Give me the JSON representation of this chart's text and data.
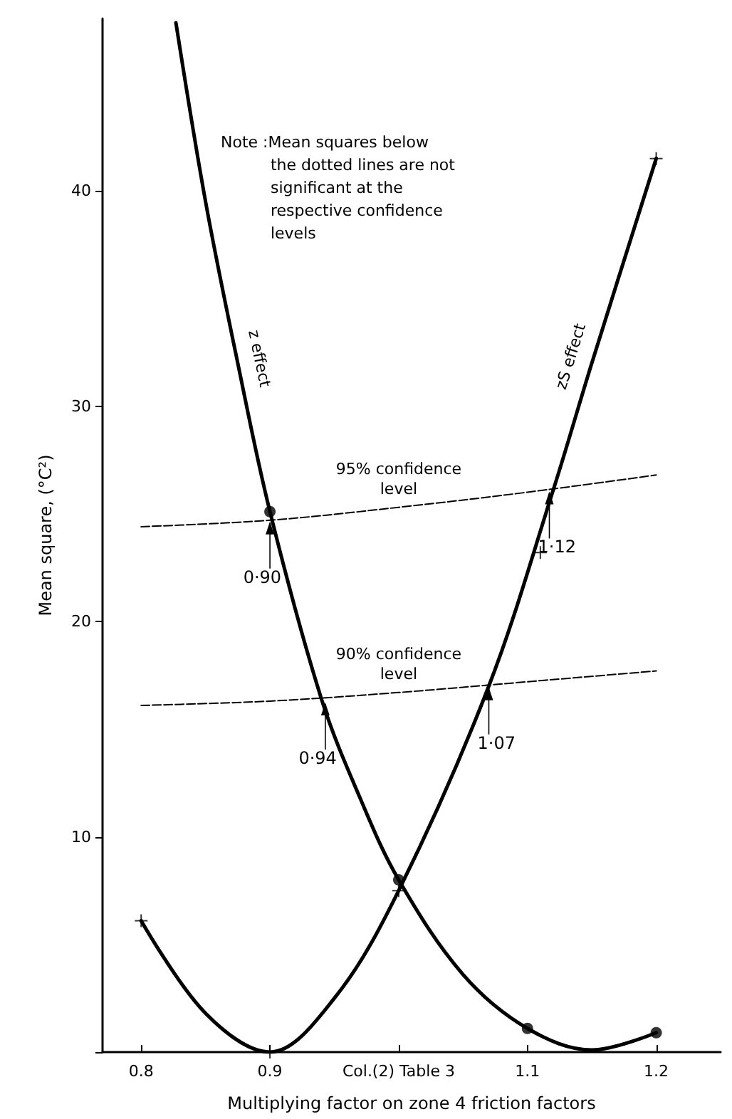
{
  "chart_data": {
    "type": "line",
    "xlabel": "Multiplying factor on zone 4 friction factors",
    "ylabel": "Mean square, (°C²)",
    "xlim": [
      0.77,
      1.25
    ],
    "ylim": [
      0,
      48
    ],
    "xticks": [
      0.8,
      0.9,
      {
        "value": 1.0,
        "label": "Col.(2) Table 3"
      },
      1.1,
      1.2
    ],
    "yticks": [
      {
        "value": 0,
        "label": null
      },
      10,
      20,
      30,
      40
    ],
    "grid": false,
    "legend": false,
    "series": [
      {
        "name": "z effect",
        "type": "line",
        "color": "#000000",
        "marker": "none",
        "line_style": "solid",
        "x": [
          0.827,
          0.85,
          0.875,
          0.9,
          0.94,
          0.97,
          1.0,
          1.05,
          1.1,
          1.15,
          1.2
        ],
        "values": [
          47.8,
          39.5,
          32,
          25.1,
          16.4,
          11.8,
          8.0,
          3.6,
          1.1,
          0.1,
          0.9
        ]
      },
      {
        "type": "scatter",
        "color": "#000000",
        "marker": "circle",
        "x": [
          0.9,
          1.0,
          1.1,
          1.2
        ],
        "values": [
          25.1,
          8.0,
          1.1,
          0.9
        ]
      },
      {
        "name": "zS effect",
        "type": "line",
        "color": "#000000",
        "marker": "none",
        "line_style": "solid",
        "x": [
          0.8,
          0.85,
          0.9,
          0.95,
          1.0,
          1.07,
          1.12,
          1.15,
          1.2
        ],
        "values": [
          6.1,
          1.8,
          0,
          2.5,
          7.5,
          17,
          26.1,
          32,
          41.5
        ]
      },
      {
        "type": "scatter",
        "color": "#000000",
        "marker": "cross",
        "x": [
          0.8,
          0.9,
          1.0,
          1.11,
          1.2
        ],
        "values": [
          6.1,
          0,
          7.5,
          23.2,
          41.5
        ]
      },
      {
        "name": "95% confidence level",
        "type": "line",
        "color": "#000000",
        "marker": "none",
        "line_style": "dashed",
        "x": [
          0.8,
          0.9,
          1.0,
          1.1,
          1.2
        ],
        "values": [
          24.4,
          24.7,
          25.3,
          26.0,
          26.8
        ]
      },
      {
        "name": "90% confidence level",
        "type": "line",
        "color": "#000000",
        "marker": "none",
        "line_style": "dashed",
        "x": [
          0.8,
          0.9,
          1.0,
          1.1,
          1.2
        ],
        "values": [
          16.1,
          16.3,
          16.7,
          17.2,
          17.7
        ]
      }
    ],
    "annotations": [
      "Note :Mean squares below the dotted lines are not significant at the respective confidence levels",
      {
        "text": "0·90",
        "x": 0.9,
        "y": 24.7
      },
      {
        "text": "0·94",
        "x": 0.943,
        "y": 16.3
      },
      {
        "text": "1·07",
        "x": 1.07,
        "y": 17.0
      },
      {
        "text": "1·12",
        "x": 1.117,
        "y": 26.1
      }
    ]
  }
}
